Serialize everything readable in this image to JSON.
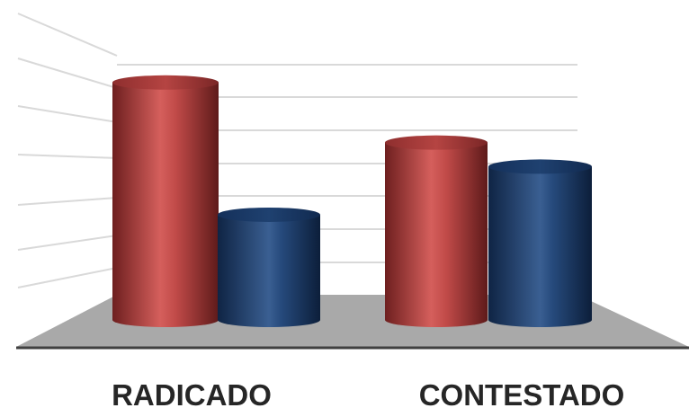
{
  "chart_data": {
    "type": "bar",
    "style": "3d-cylinder",
    "categories": [
      "RADICADO",
      "CONTESTADO"
    ],
    "series": [
      {
        "values": [
          7.9,
          5.9
        ],
        "color": "#b43c3c"
      },
      {
        "values": [
          3.5,
          5.1
        ],
        "color": "#1f3f6e"
      }
    ],
    "ylim": [
      0,
      9
    ],
    "grid": true,
    "legend": "none",
    "title": "",
    "xlabel": "",
    "ylabel": ""
  }
}
